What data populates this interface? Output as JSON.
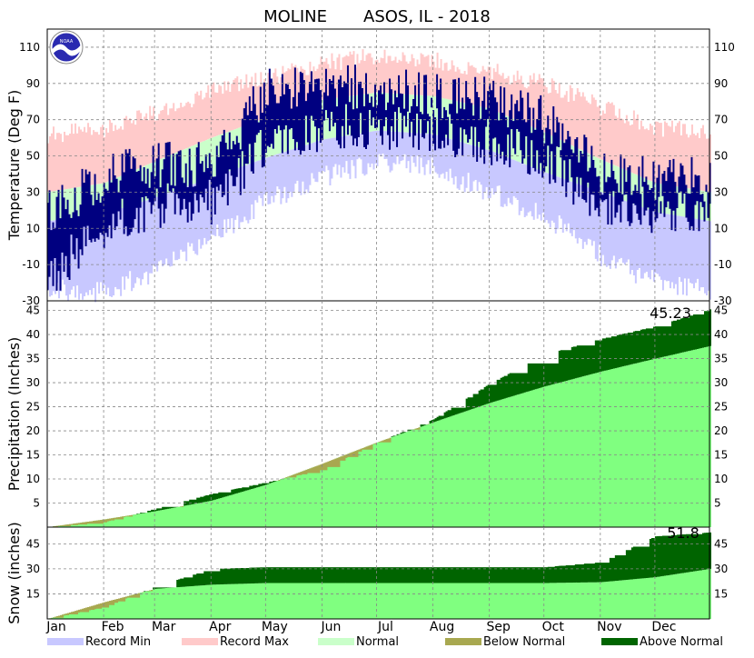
{
  "title": "MOLINE       ASOS, IL - 2018",
  "months": [
    "Jan",
    "Feb",
    "Mar",
    "Apr",
    "May",
    "Jun",
    "Jul",
    "Aug",
    "Sep",
    "Oct",
    "Nov",
    "Dec"
  ],
  "legend": [
    {
      "label": "Record Min",
      "color": "#c8c8ff"
    },
    {
      "label": "Record Max",
      "color": "#ffcaca"
    },
    {
      "label": "Normal",
      "color": "#caffca"
    },
    {
      "label": "Below Normal",
      "color": "#a8a850"
    },
    {
      "label": "Above Normal",
      "color": "#006400"
    }
  ],
  "colors": {
    "record_min": "#c8c8ff",
    "record_max": "#ffcaca",
    "normal": "#caffca",
    "observed": "#000080",
    "precip_normal": "#80ff80",
    "below": "#a8a850",
    "above": "#006400"
  },
  "logo_text": "NOAA",
  "chart_data": [
    {
      "type": "area",
      "name": "temperature",
      "ylabel": "Temperature (Deg F)",
      "ylim": [
        -30,
        120
      ],
      "yticks": [
        -30,
        -10,
        10,
        30,
        50,
        70,
        90,
        110
      ],
      "grid": true,
      "x": [
        "Jan 1",
        "Feb 1",
        "Mar 1",
        "Apr 1",
        "May 1",
        "Jun 1",
        "Jul 1",
        "Aug 1",
        "Sep 1",
        "Oct 1",
        "Nov 1",
        "Dec 1",
        "Dec 31"
      ],
      "series": [
        {
          "name": "Record Max",
          "values": [
            62,
            64,
            74,
            86,
            93,
            101,
            105,
            103,
            97,
            90,
            77,
            66,
            62
          ]
        },
        {
          "name": "Normal high",
          "values": [
            30,
            35,
            47,
            60,
            71,
            81,
            85,
            83,
            76,
            63,
            48,
            35,
            30
          ]
        },
        {
          "name": "Normal low",
          "values": [
            14,
            18,
            27,
            38,
            49,
            59,
            64,
            62,
            53,
            41,
            30,
            19,
            14
          ]
        },
        {
          "name": "Record Min",
          "values": [
            -24,
            -25,
            -14,
            5,
            25,
            38,
            47,
            43,
            30,
            17,
            -5,
            -20,
            -24
          ]
        },
        {
          "name": "Observed high",
          "values": [
            18,
            38,
            45,
            45,
            85,
            88,
            88,
            84,
            82,
            70,
            40,
            36,
            38
          ]
        },
        {
          "name": "Observed low",
          "values": [
            -18,
            10,
            22,
            25,
            55,
            65,
            67,
            64,
            58,
            48,
            24,
            20,
            20
          ]
        }
      ]
    },
    {
      "type": "area",
      "name": "precipitation",
      "ylabel": "Precipitation (Inches)",
      "ylim": [
        0,
        47
      ],
      "yticks": [
        5,
        10,
        15,
        20,
        25,
        30,
        35,
        40,
        45
      ],
      "annotation": "45.23",
      "x": [
        "Jan 1",
        "Feb 1",
        "Mar 1",
        "Apr 1",
        "May 1",
        "Jun 1",
        "Jul 1",
        "Aug 1",
        "Sep 1",
        "Oct 1",
        "Nov 1",
        "Dec 1",
        "Dec 31"
      ],
      "series": [
        {
          "name": "Normal",
          "values": [
            0,
            1.6,
            3.3,
            5.5,
            8.8,
            13.2,
            17.6,
            21.8,
            25.8,
            29.2,
            32.3,
            35.0,
            37.6
          ]
        },
        {
          "name": "Observed",
          "values": [
            0,
            1.0,
            3.8,
            6.9,
            9.3,
            11.9,
            17.6,
            22.4,
            29.8,
            35.8,
            39.1,
            41.7,
            45.23
          ]
        }
      ]
    },
    {
      "type": "area",
      "name": "snow",
      "ylabel": "Snow (inches)",
      "ylim": [
        0,
        55
      ],
      "yticks": [
        15,
        30,
        45
      ],
      "annotation": "51.8",
      "x": [
        "Jan 1",
        "Feb 1",
        "Mar 1",
        "Apr 1",
        "May 1",
        "Jun 1",
        "Jul 1",
        "Aug 1",
        "Sep 1",
        "Oct 1",
        "Nov 1",
        "Dec 1",
        "Dec 31"
      ],
      "series": [
        {
          "name": "Normal",
          "values": [
            0,
            10,
            18,
            20.5,
            21.5,
            21.5,
            21.5,
            21.5,
            21.5,
            21.5,
            22,
            25,
            30
          ]
        },
        {
          "name": "Observed",
          "values": [
            0,
            7,
            19.3,
            30,
            31,
            31,
            31,
            31,
            31,
            31,
            34,
            49.5,
            51.8
          ]
        }
      ]
    }
  ]
}
